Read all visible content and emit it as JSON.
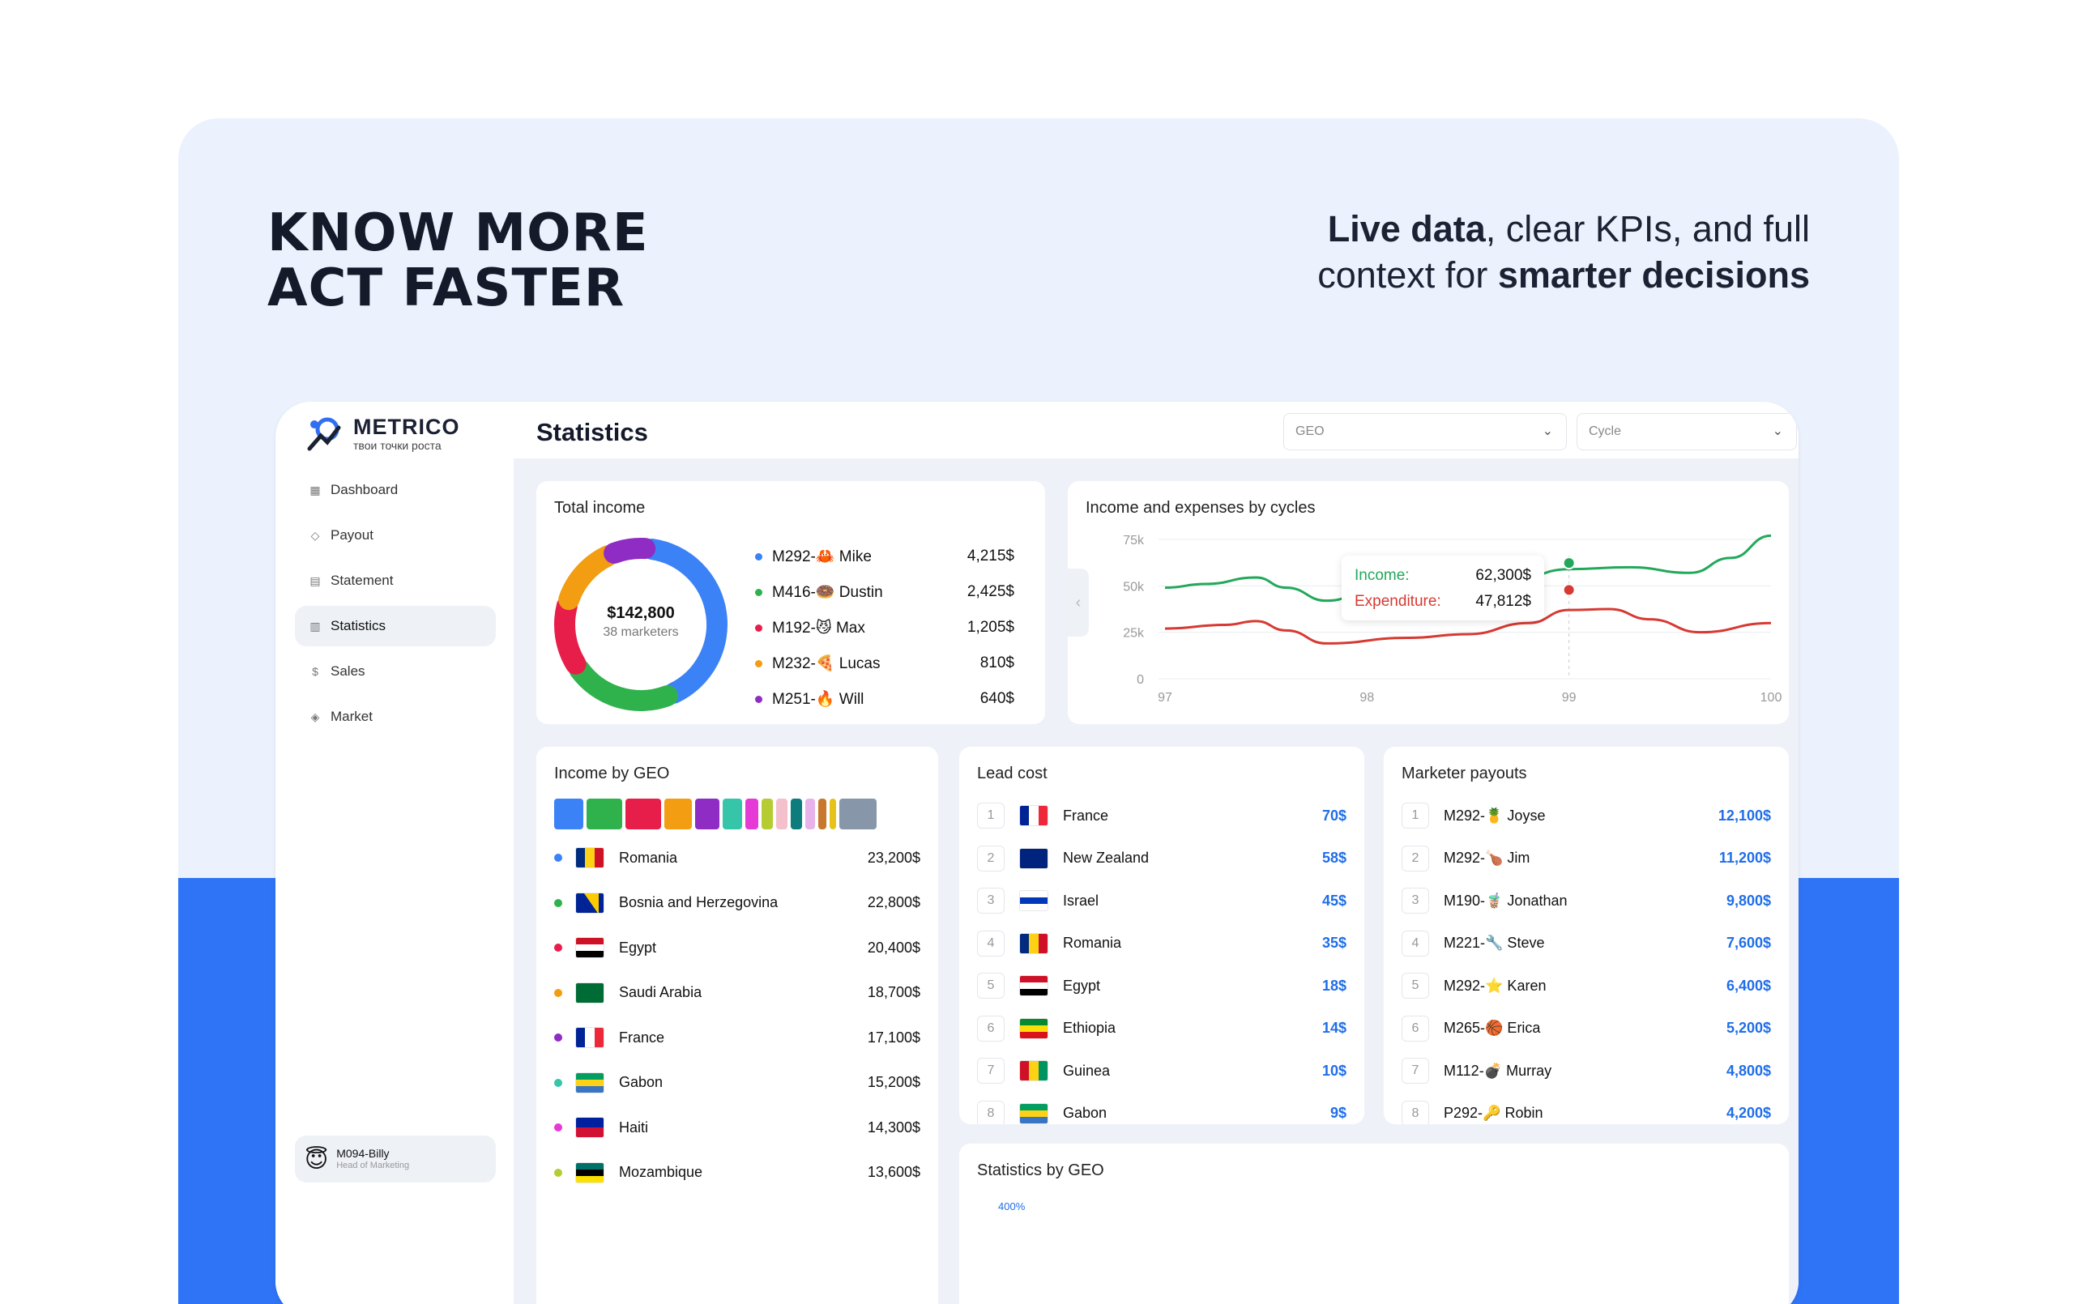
{
  "hero": {
    "headline_line1": "KNOW MORE",
    "headline_line2": "ACT FASTER",
    "tag_bold1": "Live data",
    "tag_mid": ", clear KPIs, and full",
    "tag_line2a": "context for ",
    "tag_bold2": "smarter decisions"
  },
  "brand": {
    "name": "METRICO",
    "tagline": "твои точки роста"
  },
  "nav": [
    {
      "label": "Dashboard",
      "icon": "grid-icon"
    },
    {
      "label": "Payout",
      "icon": "tag-icon"
    },
    {
      "label": "Statement",
      "icon": "document-icon"
    },
    {
      "label": "Statistics",
      "icon": "bar-chart-icon",
      "active": true
    },
    {
      "label": "Sales",
      "icon": "dollar-icon"
    },
    {
      "label": "Market",
      "icon": "diamond-icon"
    }
  ],
  "user": {
    "name": "M094-Billy",
    "role": "Head of Marketing",
    "avatar": "😇"
  },
  "page": {
    "title": "Statistics",
    "geo_placeholder": "GEO",
    "cycle_placeholder": "Cycle"
  },
  "total_income": {
    "title": "Total income",
    "total": "$142,800",
    "sub": "38 marketers",
    "items": [
      {
        "label": "M292-🦀 Mike",
        "value": "4,215$",
        "color": "#3b82f6"
      },
      {
        "label": "M416-🍩 Dustin",
        "value": "2,425$",
        "color": "#2fb24c"
      },
      {
        "label": "M192-😼 Max",
        "value": "1,205$",
        "color": "#e81e4a"
      },
      {
        "label": "M232-🍕 Lucas",
        "value": "810$",
        "color": "#f29d12"
      },
      {
        "label": "M251-🔥 Will",
        "value": "640$",
        "color": "#8e2cc4"
      }
    ],
    "segments": [
      {
        "value": 4215,
        "color": "#3b82f6"
      },
      {
        "value": 2425,
        "color": "#2fb24c"
      },
      {
        "value": 1205,
        "color": "#e81e4a"
      },
      {
        "value": 810,
        "color": "#f29d12"
      },
      {
        "value": 640,
        "color": "#8e2cc4"
      }
    ]
  },
  "chart_data": {
    "type": "line",
    "title": "Income and expenses by cycles",
    "x": [
      97,
      98,
      99,
      100
    ],
    "ylim": [
      0,
      75000
    ],
    "yticks": [
      "0",
      "25k",
      "50k",
      "75k"
    ],
    "series": [
      {
        "name": "Income",
        "color": "#22a85a",
        "points": [
          [
            97,
            49000
          ],
          [
            97.2,
            51000
          ],
          [
            97.45,
            54500
          ],
          [
            97.6,
            49000
          ],
          [
            97.8,
            42000
          ],
          [
            98,
            46000
          ],
          [
            98.4,
            53000
          ],
          [
            98.7,
            52000
          ],
          [
            99,
            59000
          ],
          [
            99.3,
            60000
          ],
          [
            99.6,
            57000
          ],
          [
            99.8,
            65000
          ],
          [
            100,
            77000
          ]
        ]
      },
      {
        "name": "Expenditure",
        "color": "#d63a32",
        "points": [
          [
            97,
            27000
          ],
          [
            97.3,
            29000
          ],
          [
            97.45,
            31000
          ],
          [
            97.6,
            26000
          ],
          [
            97.8,
            19000
          ],
          [
            98.2,
            22000
          ],
          [
            98.5,
            24000
          ],
          [
            98.8,
            30000
          ],
          [
            99,
            37000
          ],
          [
            99.2,
            37500
          ],
          [
            99.4,
            32000
          ],
          [
            99.65,
            25000
          ],
          [
            100,
            30000
          ]
        ]
      }
    ],
    "tooltip": {
      "income_label": "Income:",
      "income_value": "62,300$",
      "exp_label": "Expenditure:",
      "exp_value": "47,812$"
    }
  },
  "income_geo": {
    "title": "Income by GEO",
    "bar": [
      {
        "c": "#3b82f6",
        "w": 36
      },
      {
        "c": "#2fb24c",
        "w": 44
      },
      {
        "c": "#e81e4a",
        "w": 44
      },
      {
        "c": "#f29d12",
        "w": 34
      },
      {
        "c": "#8e2cc4",
        "w": 30
      },
      {
        "c": "#36c5a8",
        "w": 24
      },
      {
        "c": "#e53ad6",
        "w": 16
      },
      {
        "c": "#b6cc33",
        "w": 14
      },
      {
        "c": "#f4c0cb",
        "w": 14
      },
      {
        "c": "#0d7c7c",
        "w": 14
      },
      {
        "c": "#e7b3ea",
        "w": 12
      },
      {
        "c": "#c8782c",
        "w": 10
      },
      {
        "c": "#e6c21a",
        "w": 8
      },
      {
        "c": "#8796a8",
        "w": 46
      }
    ],
    "rows": [
      {
        "name": "Romania",
        "value": "23,200$",
        "dot": "#3b82f6",
        "flag": [
          "#002b7f",
          "#fcd116",
          "#ce1126"
        ],
        "dir": "v"
      },
      {
        "name": "Bosnia and Herzegovina",
        "value": "22,800$",
        "dot": "#2fb24c",
        "flag": [
          "#002395",
          "#fecb00",
          "#002395"
        ],
        "dir": "bih"
      },
      {
        "name": "Egypt",
        "value": "20,400$",
        "dot": "#e81e4a",
        "flag": [
          "#ce1126",
          "#ffffff",
          "#000000"
        ],
        "dir": "h"
      },
      {
        "name": "Saudi Arabia",
        "value": "18,700$",
        "dot": "#f29d12",
        "flag": [
          "#006c35"
        ],
        "dir": "s"
      },
      {
        "name": "France",
        "value": "17,100$",
        "dot": "#8e2cc4",
        "flag": [
          "#002395",
          "#ffffff",
          "#ed2939"
        ],
        "dir": "v"
      },
      {
        "name": "Gabon",
        "value": "15,200$",
        "dot": "#36c5a8",
        "flag": [
          "#009e60",
          "#fcd116",
          "#3a75c4"
        ],
        "dir": "h"
      },
      {
        "name": "Haiti",
        "value": "14,300$",
        "dot": "#e53ad6",
        "flag": [
          "#00209f",
          "#d21034"
        ],
        "dir": "h"
      },
      {
        "name": "Mozambique",
        "value": "13,600$",
        "dot": "#b6cc33",
        "flag": [
          "#007168",
          "#000000",
          "#fce100"
        ],
        "dir": "h"
      }
    ]
  },
  "lead_cost": {
    "title": "Lead cost",
    "rows": [
      {
        "rank": "1",
        "name": "France",
        "value": "70$",
        "flag": [
          "#002395",
          "#ffffff",
          "#ed2939"
        ],
        "dir": "v"
      },
      {
        "rank": "2",
        "name": "New Zealand",
        "value": "58$",
        "flag": [
          "#00247d"
        ],
        "dir": "s"
      },
      {
        "rank": "3",
        "name": "Israel",
        "value": "45$",
        "flag": [
          "#ffffff",
          "#0038b8",
          "#ffffff"
        ],
        "dir": "h"
      },
      {
        "rank": "4",
        "name": "Romania",
        "value": "35$",
        "flag": [
          "#002b7f",
          "#fcd116",
          "#ce1126"
        ],
        "dir": "v"
      },
      {
        "rank": "5",
        "name": "Egypt",
        "value": "18$",
        "flag": [
          "#ce1126",
          "#ffffff",
          "#000000"
        ],
        "dir": "h"
      },
      {
        "rank": "6",
        "name": "Ethiopia",
        "value": "14$",
        "flag": [
          "#078930",
          "#fcdd09",
          "#da121a"
        ],
        "dir": "h"
      },
      {
        "rank": "7",
        "name": "Guinea",
        "value": "10$",
        "flag": [
          "#ce1126",
          "#fcd116",
          "#009460"
        ],
        "dir": "v"
      },
      {
        "rank": "8",
        "name": "Gabon",
        "value": "9$",
        "flag": [
          "#009e60",
          "#fcd116",
          "#3a75c4"
        ],
        "dir": "h"
      }
    ]
  },
  "payouts": {
    "title": "Marketer payouts",
    "rows": [
      {
        "rank": "1",
        "name": "M292-🍍 Joyse",
        "value": "12,100$"
      },
      {
        "rank": "2",
        "name": "M292-🍗 Jim",
        "value": "11,200$"
      },
      {
        "rank": "3",
        "name": "M190-🧋 Jonathan",
        "value": "9,800$"
      },
      {
        "rank": "4",
        "name": "M221-🔧 Steve",
        "value": "7,600$"
      },
      {
        "rank": "5",
        "name": "M292-⭐ Karen",
        "value": "6,400$"
      },
      {
        "rank": "6",
        "name": "M265-🏀 Erica",
        "value": "5,200$"
      },
      {
        "rank": "7",
        "name": "M112-💣 Murray",
        "value": "4,800$"
      },
      {
        "rank": "8",
        "name": "P292-🔑 Robin",
        "value": "4,200$"
      }
    ]
  },
  "stats_geo": {
    "title": "Statistics by GEO",
    "first_tick": "400%"
  }
}
